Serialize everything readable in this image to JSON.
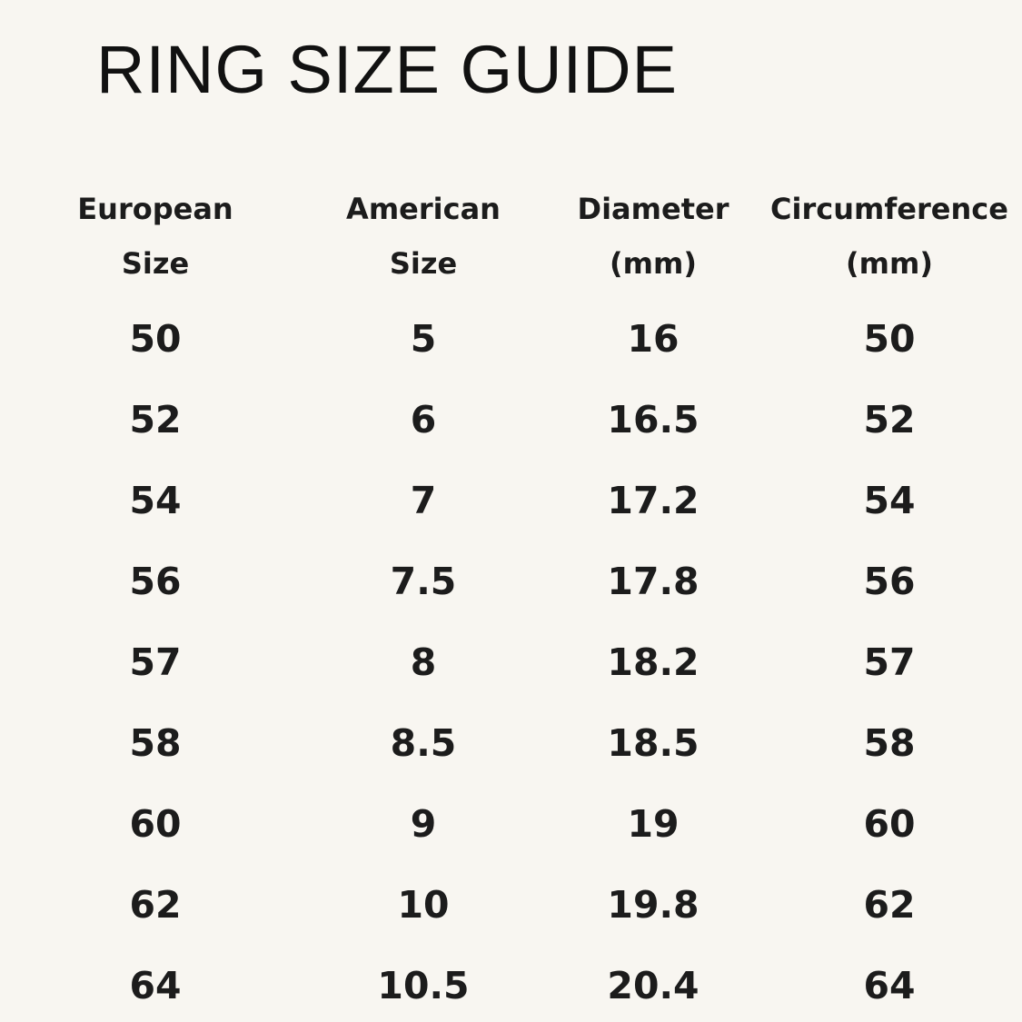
{
  "title": "RING SIZE GUIDE",
  "table": {
    "headers": [
      {
        "line1": "European",
        "line2": "Size"
      },
      {
        "line1": "American",
        "line2": "Size"
      },
      {
        "line1": "Diameter",
        "line2": "(mm)"
      },
      {
        "line1": "Circumference",
        "line2": "(mm)"
      }
    ],
    "rows": [
      [
        "50",
        "5",
        "16",
        "50"
      ],
      [
        "52",
        "6",
        "16.5",
        "52"
      ],
      [
        "54",
        "7",
        "17.2",
        "54"
      ],
      [
        "56",
        "7.5",
        "17.8",
        "56"
      ],
      [
        "57",
        "8",
        "18.2",
        "57"
      ],
      [
        "58",
        "8.5",
        "18.5",
        "58"
      ],
      [
        "60",
        "9",
        "19",
        "60"
      ],
      [
        "62",
        "10",
        "19.8",
        "62"
      ],
      [
        "64",
        "10.5",
        "20.4",
        "64"
      ]
    ]
  }
}
